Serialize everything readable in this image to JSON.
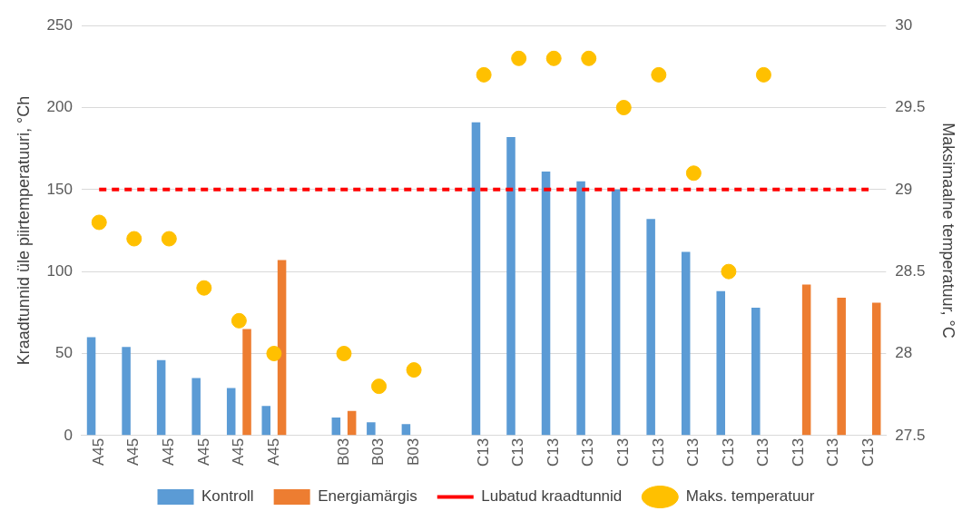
{
  "chart_data": {
    "type": "bar",
    "ylabel": "Kraadtunnid üle piirtemperatuuri, °Ch",
    "y2label": "Maksimaalne temperatuur, °C",
    "categories": [
      "A45",
      "A45",
      "A45",
      "A45",
      "A45",
      "A45",
      null,
      "B03",
      "B03",
      "B03",
      null,
      "C13",
      "C13",
      "C13",
      "C13",
      "C13",
      "C13",
      "C13",
      "C13",
      "C13",
      "C13",
      "C13",
      "C13"
    ],
    "series": [
      {
        "name": "Kontroll",
        "color": "#5b9bd5",
        "values": [
          60,
          54,
          46,
          35,
          29,
          18,
          null,
          11,
          8,
          7,
          null,
          191,
          182,
          161,
          155,
          150,
          132,
          112,
          88,
          78,
          null,
          null,
          null
        ]
      },
      {
        "name": "Energiamärgis",
        "color": "#ed7d31",
        "values": [
          null,
          null,
          null,
          null,
          65,
          107,
          null,
          15,
          null,
          null,
          null,
          null,
          null,
          null,
          null,
          null,
          null,
          null,
          null,
          null,
          92,
          84,
          81
        ]
      },
      {
        "name": "Lubatud kraadtunnid",
        "type": "line",
        "color": "#ff0000",
        "line_style": "dashed",
        "marker": "none",
        "values": [
          150,
          150,
          150,
          150,
          150,
          150,
          150,
          150,
          150,
          150,
          150,
          150,
          150,
          150,
          150,
          150,
          150,
          150,
          150,
          150,
          150,
          150,
          150
        ]
      },
      {
        "name": "Maks. temperatuur",
        "type": "scatter",
        "axis": "y2",
        "color": "#ffc000",
        "marker": "circle",
        "values": [
          28.8,
          28.7,
          28.7,
          28.4,
          28.2,
          28.0,
          null,
          28.0,
          27.8,
          27.9,
          null,
          29.7,
          29.8,
          29.8,
          29.8,
          29.5,
          29.7,
          29.1,
          28.5,
          29.7,
          null,
          null,
          null
        ]
      }
    ],
    "ylim": [
      0,
      250
    ],
    "yticks": [
      0,
      50,
      100,
      150,
      200,
      250
    ],
    "y2lim": [
      27.5,
      30
    ],
    "y2ticks": [
      27.5,
      28,
      28.5,
      29,
      29.5,
      30
    ],
    "grid": "y",
    "legend": "bottom"
  }
}
